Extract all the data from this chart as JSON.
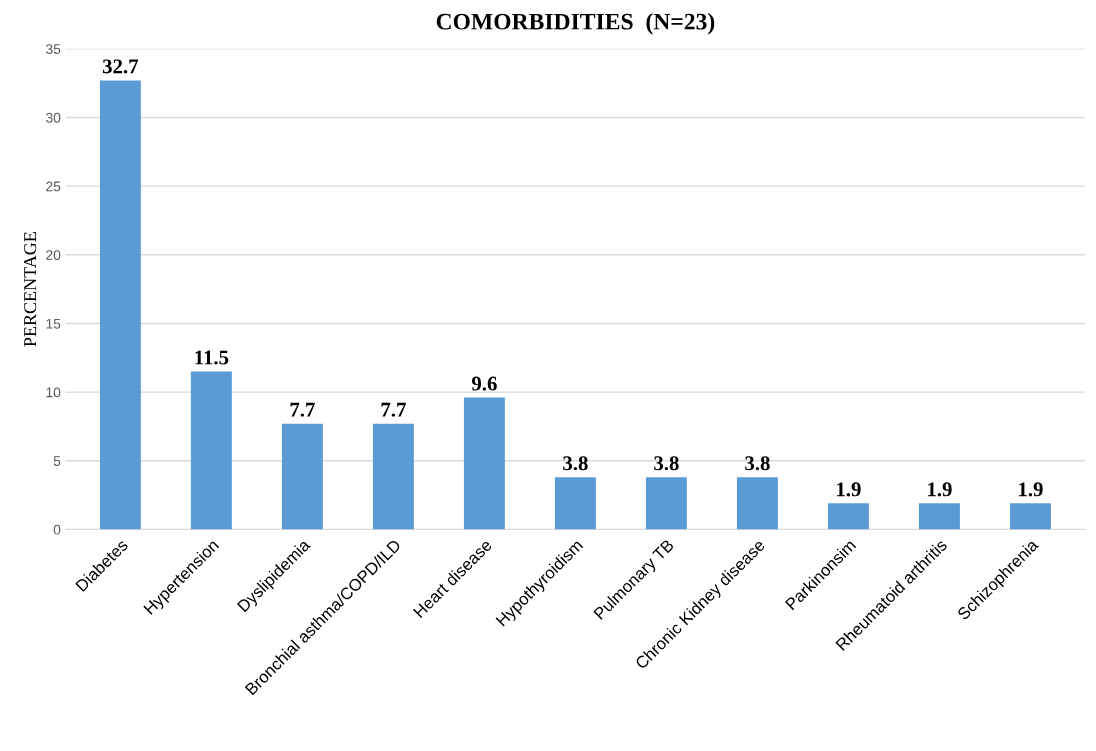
{
  "chart_data": {
    "type": "bar",
    "title": "COMORBIDITIES  (N=23)",
    "ylabel": "PERCENTAGE",
    "categories": [
      "Diabetes",
      "Hypertension",
      "Dyslipidemia",
      "Bronchial asthma/COPD/ILD",
      "Heart disease",
      "Hypothyroidism",
      "Pulmonary TB",
      "Chronic Kidney disease",
      "Parkinonsim",
      "Rheumatoid arthritis",
      "Schizophrenia"
    ],
    "values": [
      32.7,
      11.5,
      7.7,
      7.7,
      9.6,
      3.8,
      3.8,
      3.8,
      1.9,
      1.9,
      1.9
    ],
    "color": "#5b9bd5",
    "ylim": [
      0,
      35
    ],
    "yticks": [
      0,
      5,
      10,
      15,
      20,
      25,
      30,
      35
    ],
    "grid": "y",
    "data_labels": true,
    "legend": false
  }
}
